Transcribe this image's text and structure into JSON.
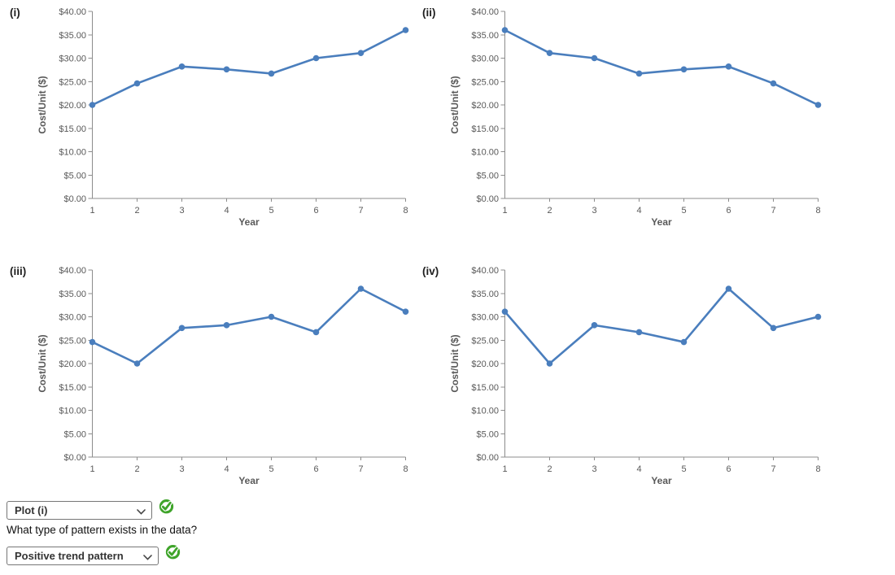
{
  "colors": {
    "line": "#4a7ebd",
    "marker": "#4a7ebd",
    "axis": "#8c8c8c",
    "tick_text": "#595959",
    "axis_title_text": "#595959",
    "chart_label_text": "#1f1f1f",
    "check_green": "#3fa42a",
    "select_border": "#767676",
    "select_text": "#333333"
  },
  "chart_data": [
    {
      "type": "line",
      "label": "(i)",
      "x": [
        1,
        2,
        3,
        4,
        5,
        6,
        7,
        8
      ],
      "values": [
        20.0,
        24.6,
        28.2,
        27.6,
        26.7,
        30.0,
        31.1,
        36.0
      ],
      "xlabel": "Year",
      "ylabel": "Cost/Unit ($)",
      "ylim": [
        0,
        40
      ],
      "yticks": [
        {
          "value": 0,
          "label": "$0.00"
        },
        {
          "value": 5,
          "label": "$5.00"
        },
        {
          "value": 10,
          "label": "$10.00"
        },
        {
          "value": 15,
          "label": "$15.00"
        },
        {
          "value": 20,
          "label": "$20.00"
        },
        {
          "value": 25,
          "label": "$25.00"
        },
        {
          "value": 30,
          "label": "$30.00"
        },
        {
          "value": 35,
          "label": "$35.00"
        },
        {
          "value": 40,
          "label": "$40.00"
        }
      ],
      "grid": false,
      "markers": true,
      "legend": null
    },
    {
      "type": "line",
      "label": "(ii)",
      "x": [
        1,
        2,
        3,
        4,
        5,
        6,
        7,
        8
      ],
      "values": [
        36.0,
        31.1,
        30.0,
        26.7,
        27.6,
        28.2,
        24.6,
        20.0
      ],
      "xlabel": "Year",
      "ylabel": "Cost/Unit ($)",
      "ylim": [
        0,
        40
      ],
      "yticks": [
        {
          "value": 0,
          "label": "$0.00"
        },
        {
          "value": 5,
          "label": "$5.00"
        },
        {
          "value": 10,
          "label": "$10.00"
        },
        {
          "value": 15,
          "label": "$15.00"
        },
        {
          "value": 20,
          "label": "$20.00"
        },
        {
          "value": 25,
          "label": "$25.00"
        },
        {
          "value": 30,
          "label": "$30.00"
        },
        {
          "value": 35,
          "label": "$35.00"
        },
        {
          "value": 40,
          "label": "$40.00"
        }
      ],
      "grid": false,
      "markers": true,
      "legend": null
    },
    {
      "type": "line",
      "label": "(iii)",
      "x": [
        1,
        2,
        3,
        4,
        5,
        6,
        7,
        8
      ],
      "values": [
        24.6,
        20.0,
        27.6,
        28.2,
        30.0,
        26.7,
        36.0,
        31.1
      ],
      "xlabel": "Year",
      "ylabel": "Cost/Unit ($)",
      "ylim": [
        0,
        40
      ],
      "yticks": [
        {
          "value": 0,
          "label": "$0.00"
        },
        {
          "value": 5,
          "label": "$5.00"
        },
        {
          "value": 10,
          "label": "$10.00"
        },
        {
          "value": 15,
          "label": "$15.00"
        },
        {
          "value": 20,
          "label": "$20.00"
        },
        {
          "value": 25,
          "label": "$25.00"
        },
        {
          "value": 30,
          "label": "$30.00"
        },
        {
          "value": 35,
          "label": "$35.00"
        },
        {
          "value": 40,
          "label": "$40.00"
        }
      ],
      "grid": false,
      "markers": true,
      "legend": null
    },
    {
      "type": "line",
      "label": "(iv)",
      "x": [
        1,
        2,
        3,
        4,
        5,
        6,
        7,
        8
      ],
      "values": [
        31.1,
        20.0,
        28.2,
        26.7,
        24.6,
        36.0,
        27.6,
        30.0
      ],
      "xlabel": "Year",
      "ylabel": "Cost/Unit ($)",
      "ylim": [
        0,
        40
      ],
      "yticks": [
        {
          "value": 0,
          "label": "$0.00"
        },
        {
          "value": 5,
          "label": "$5.00"
        },
        {
          "value": 10,
          "label": "$10.00"
        },
        {
          "value": 15,
          "label": "$15.00"
        },
        {
          "value": 20,
          "label": "$20.00"
        },
        {
          "value": 25,
          "label": "$25.00"
        },
        {
          "value": 30,
          "label": "$30.00"
        },
        {
          "value": 35,
          "label": "$35.00"
        },
        {
          "value": 40,
          "label": "$40.00"
        }
      ],
      "grid": false,
      "markers": true,
      "legend": null
    }
  ],
  "controls": {
    "plot_select": {
      "value": "Plot (i)",
      "status": "correct"
    },
    "question": "What type of pattern exists in the data?",
    "pattern_select": {
      "value": "Positive trend pattern",
      "status": "correct"
    },
    "check_icon_meaning": "answer correct"
  }
}
